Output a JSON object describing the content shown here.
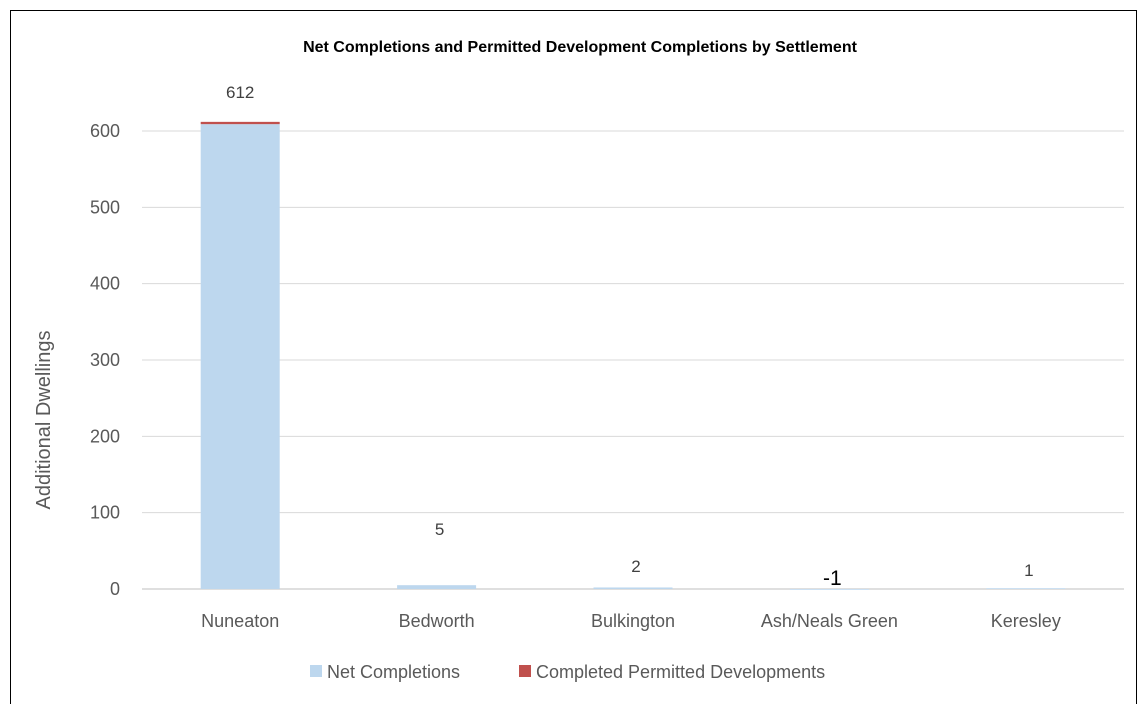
{
  "chart_data": {
    "type": "bar",
    "stacked": true,
    "title": "Net Completions and Permitted Development Completions by Settlement",
    "ylabel": "Additional Dwellings",
    "xlabel": "",
    "categories": [
      "Nuneaton",
      "Bedworth",
      "Bulkington",
      "Ash/Neals Green",
      "Keresley"
    ],
    "series": [
      {
        "name": "Net Completions",
        "color": "#bdd7ee",
        "values": [
          609,
          5,
          2,
          -1,
          1
        ]
      },
      {
        "name": "Completed Permitted Developments",
        "color": "#c0504d",
        "values": [
          3,
          0,
          0,
          0,
          0
        ]
      }
    ],
    "data_labels": [
      "612",
      "5",
      "2",
      "-1",
      "1"
    ],
    "ylim": [
      0,
      600
    ],
    "yticks": [
      0,
      100,
      200,
      300,
      400,
      500,
      600
    ],
    "grid": true,
    "legend_position": "bottom"
  }
}
